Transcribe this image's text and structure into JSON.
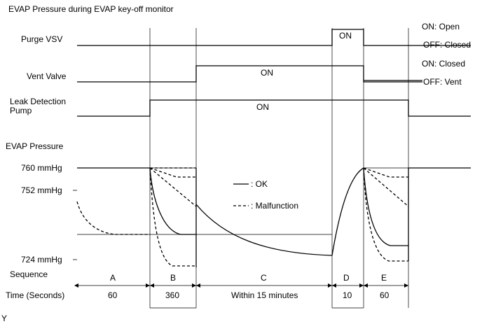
{
  "title": "EVAP Pressure during EVAP key-off monitor",
  "signals": {
    "purge_vsv": {
      "label": "Purge VSV",
      "on_text": "ON",
      "state_high": "ON: Open",
      "state_low": "OFF: Closed"
    },
    "vent_valve": {
      "label": "Vent Valve",
      "on_text": "ON",
      "state_high": "ON: Closed",
      "state_low": "OFF: Vent"
    },
    "leak_pump": {
      "label_line1": "Leak Detection",
      "label_line2": "Pump",
      "on_text": "ON"
    }
  },
  "pressure": {
    "label": "EVAP Pressure",
    "levels": [
      "760 mmHg",
      "752 mmHg",
      "724 mmHg"
    ]
  },
  "legend": {
    "ok": ": OK",
    "malfunction": ": Malfunction"
  },
  "sequence_label": "Sequence",
  "time_label": "Time (Seconds)",
  "phases": [
    {
      "name": "A",
      "time": "60"
    },
    {
      "name": "B",
      "time": "360"
    },
    {
      "name": "C",
      "time": "Within 15 minutes"
    },
    {
      "name": "D",
      "time": "10"
    },
    {
      "name": "E",
      "time": "60"
    }
  ],
  "footer_mark": "Y"
}
